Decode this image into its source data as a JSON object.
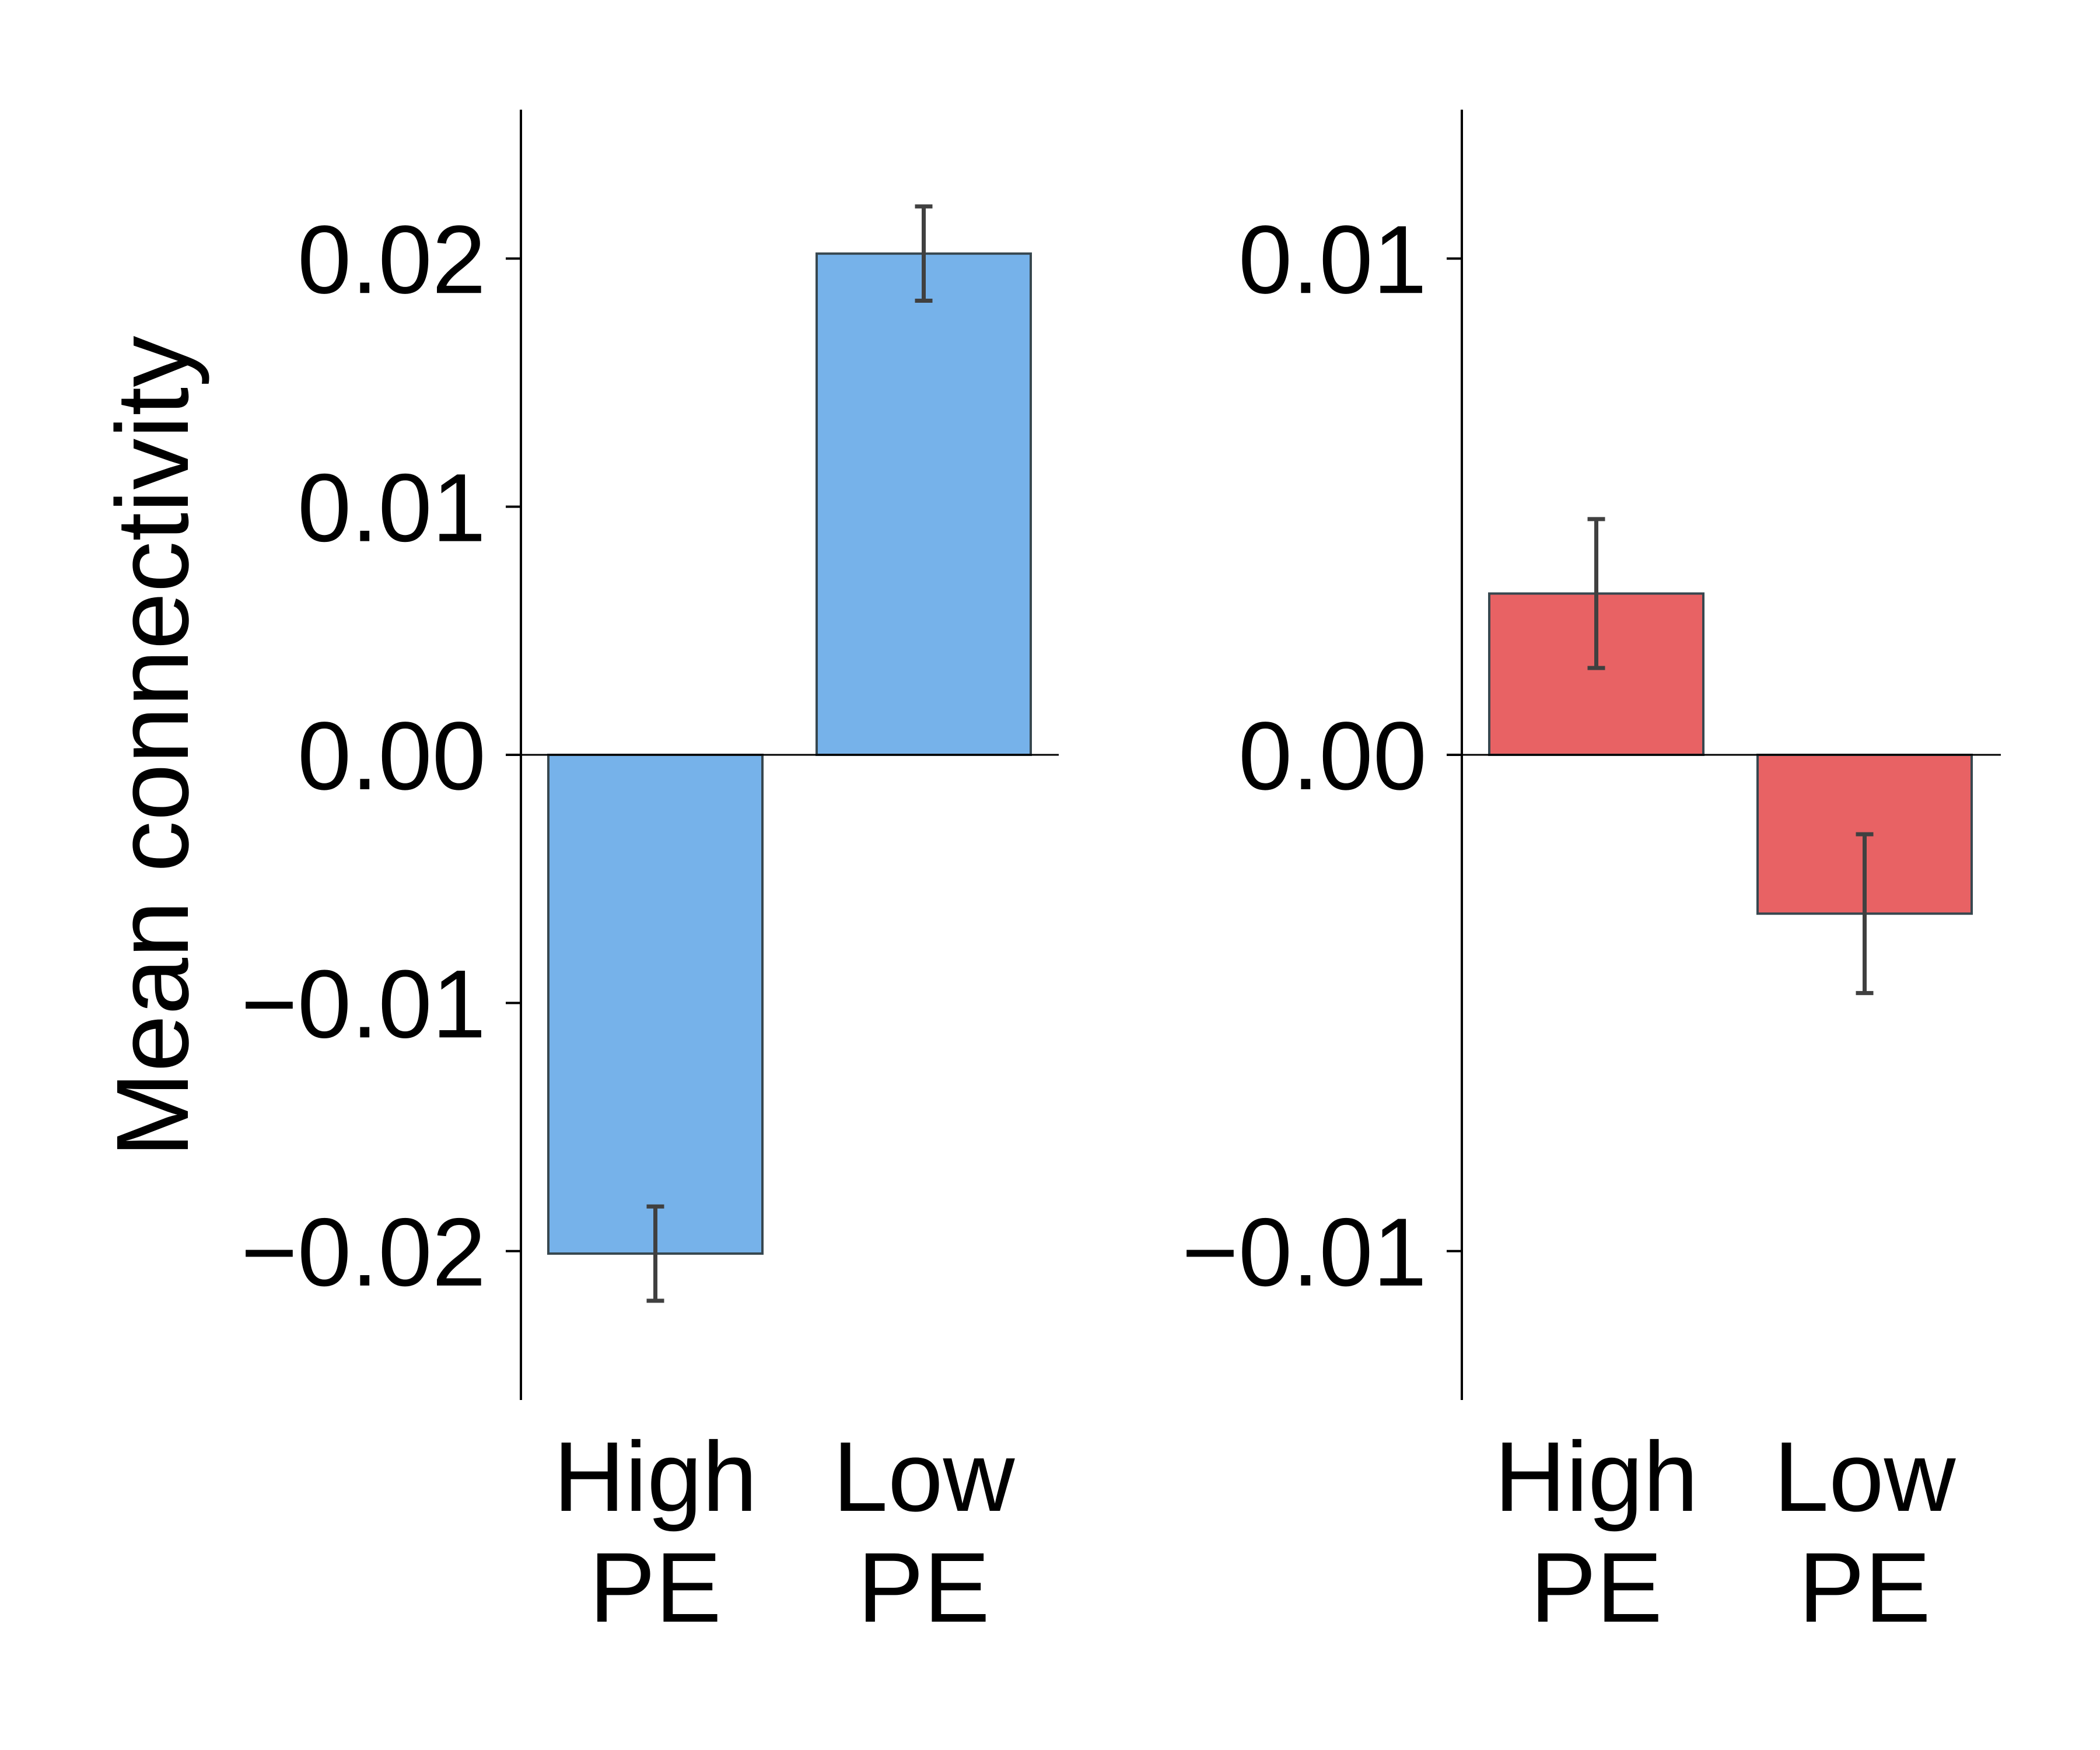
{
  "figure": {
    "ylabel": "Mean connectivity"
  },
  "chart_data": [
    {
      "type": "bar",
      "categories": [
        [
          "High",
          "PE"
        ],
        [
          "Low",
          "PE"
        ]
      ],
      "values": [
        -0.0201,
        0.0202
      ],
      "error": [
        0.0019,
        0.0019
      ],
      "ylim": [
        -0.026,
        0.026
      ],
      "yticks": [
        -0.02,
        -0.01,
        0.0,
        0.01,
        0.02
      ],
      "ytick_labels": [
        "−0.02",
        "−0.01",
        "0.00",
        "0.01",
        "0.02"
      ],
      "ylabel": "Mean connectivity",
      "xlabel": "",
      "title": "",
      "bar_color": "#76b2ea",
      "bar_edge_color": "#37474f",
      "error_color": "#404040",
      "grid": false
    },
    {
      "type": "bar",
      "categories": [
        [
          "High",
          "PE"
        ],
        [
          "Low",
          "PE"
        ]
      ],
      "values": [
        0.00325,
        -0.0032
      ],
      "error": [
        0.0015,
        0.0016
      ],
      "ylim": [
        -0.013,
        0.013
      ],
      "yticks": [
        -0.01,
        0.0,
        0.01
      ],
      "ytick_labels": [
        "−0.01",
        "0.00",
        "0.01"
      ],
      "ylabel": "",
      "xlabel": "",
      "title": "",
      "bar_color": "#e86264",
      "bar_edge_color": "#37474f",
      "error_color": "#404040",
      "grid": false
    }
  ]
}
